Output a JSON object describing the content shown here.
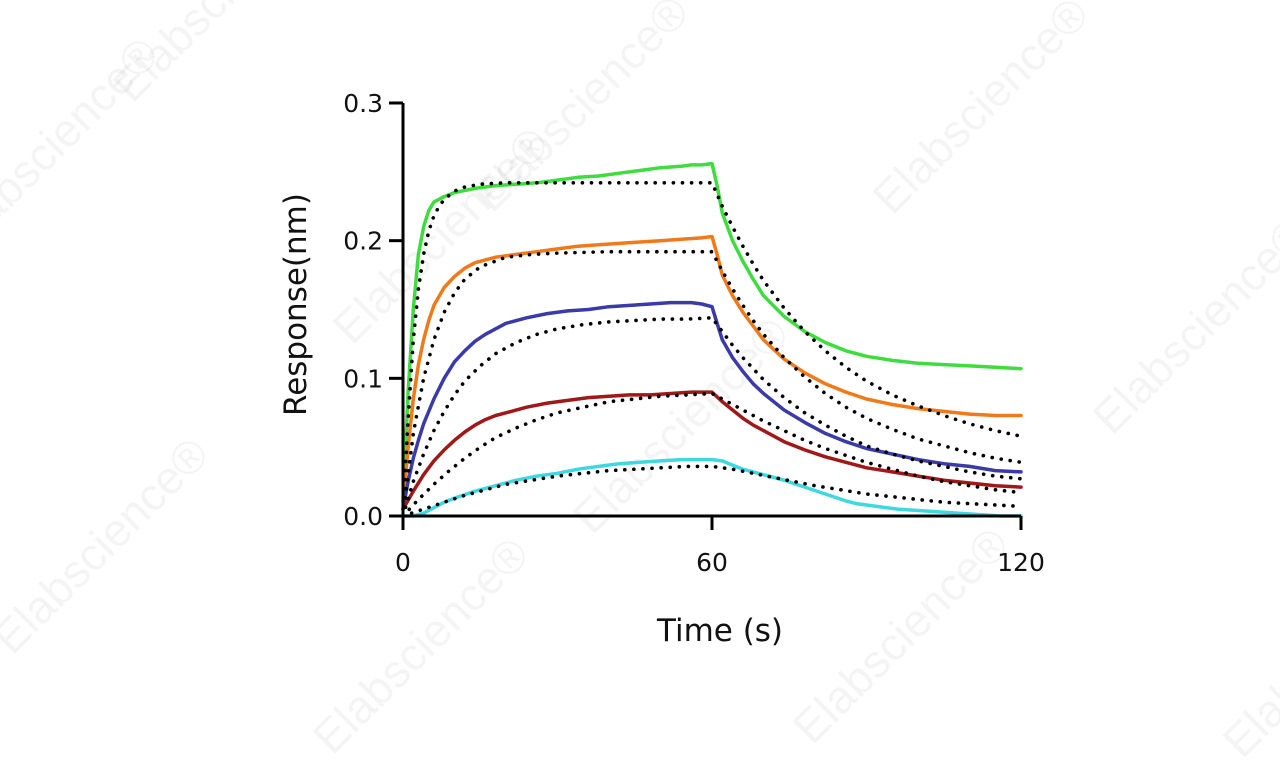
{
  "watermark": "Elabscience®",
  "chart_data": {
    "type": "line",
    "title": "",
    "xlabel": "Time (s)",
    "ylabel": "Response(nm)",
    "xlim": [
      0,
      120
    ],
    "ylim": [
      0,
      0.3
    ],
    "x_ticks": [
      0,
      60,
      120
    ],
    "x_tick_labels": [
      "0",
      "60",
      "120"
    ],
    "y_ticks": [
      0,
      0.1,
      0.2,
      0.3
    ],
    "y_tick_labels": [
      "0.0",
      "0.1",
      "0.2",
      "0.3"
    ],
    "grid": false,
    "legend": "none",
    "series": [
      {
        "color": "#3fdc3f",
        "style": "solid",
        "x": [
          0,
          1,
          2,
          3,
          4,
          5,
          6,
          8,
          10,
          14,
          18,
          22,
          26,
          30,
          34,
          38,
          42,
          46,
          50,
          54,
          56,
          58,
          60,
          61,
          62,
          64,
          66,
          68,
          70,
          74,
          78,
          82,
          86,
          90,
          95,
          100,
          105,
          110,
          115,
          120
        ],
        "y": [
          0.01,
          0.09,
          0.15,
          0.19,
          0.21,
          0.222,
          0.228,
          0.232,
          0.235,
          0.238,
          0.24,
          0.241,
          0.242,
          0.244,
          0.246,
          0.247,
          0.249,
          0.251,
          0.253,
          0.254,
          0.255,
          0.255,
          0.256,
          0.24,
          0.22,
          0.2,
          0.185,
          0.172,
          0.16,
          0.145,
          0.134,
          0.126,
          0.12,
          0.116,
          0.113,
          0.111,
          0.11,
          0.109,
          0.108,
          0.107
        ]
      },
      {
        "color": "#f07a1a",
        "style": "solid",
        "x": [
          0,
          1,
          2,
          3,
          4,
          5,
          6,
          8,
          10,
          12,
          14,
          18,
          22,
          26,
          30,
          34,
          38,
          42,
          46,
          50,
          54,
          58,
          60,
          61,
          62,
          64,
          66,
          68,
          70,
          74,
          78,
          82,
          86,
          90,
          95,
          100,
          105,
          110,
          115,
          120
        ],
        "y": [
          0.005,
          0.05,
          0.085,
          0.11,
          0.128,
          0.142,
          0.153,
          0.166,
          0.174,
          0.18,
          0.184,
          0.188,
          0.19,
          0.192,
          0.194,
          0.196,
          0.197,
          0.198,
          0.199,
          0.2,
          0.201,
          0.202,
          0.203,
          0.19,
          0.175,
          0.16,
          0.148,
          0.138,
          0.128,
          0.114,
          0.104,
          0.096,
          0.09,
          0.085,
          0.081,
          0.078,
          0.076,
          0.074,
          0.073,
          0.073
        ]
      },
      {
        "color": "#3a3aa8",
        "style": "solid",
        "x": [
          0,
          1,
          2,
          3,
          4,
          6,
          8,
          10,
          12,
          14,
          16,
          18,
          20,
          24,
          28,
          32,
          36,
          40,
          44,
          48,
          52,
          56,
          58,
          60,
          61,
          62,
          64,
          66,
          68,
          70,
          74,
          78,
          82,
          86,
          90,
          95,
          100,
          105,
          110,
          115,
          120
        ],
        "y": [
          0.005,
          0.025,
          0.042,
          0.055,
          0.067,
          0.085,
          0.1,
          0.112,
          0.12,
          0.127,
          0.132,
          0.136,
          0.14,
          0.144,
          0.147,
          0.149,
          0.15,
          0.152,
          0.153,
          0.154,
          0.155,
          0.155,
          0.154,
          0.152,
          0.14,
          0.128,
          0.115,
          0.105,
          0.096,
          0.089,
          0.077,
          0.068,
          0.06,
          0.054,
          0.049,
          0.045,
          0.041,
          0.038,
          0.036,
          0.033,
          0.032
        ]
      },
      {
        "color": "#a01818",
        "style": "solid",
        "x": [
          0,
          2,
          4,
          6,
          8,
          10,
          12,
          14,
          16,
          18,
          20,
          24,
          28,
          32,
          36,
          40,
          44,
          48,
          52,
          56,
          58,
          60,
          62,
          64,
          66,
          68,
          70,
          74,
          78,
          82,
          86,
          90,
          95,
          100,
          105,
          110,
          115,
          120
        ],
        "y": [
          0.005,
          0.018,
          0.03,
          0.04,
          0.048,
          0.055,
          0.061,
          0.066,
          0.07,
          0.073,
          0.075,
          0.079,
          0.082,
          0.084,
          0.086,
          0.087,
          0.088,
          0.088,
          0.089,
          0.09,
          0.09,
          0.09,
          0.083,
          0.077,
          0.071,
          0.066,
          0.062,
          0.054,
          0.048,
          0.043,
          0.039,
          0.035,
          0.032,
          0.029,
          0.026,
          0.024,
          0.022,
          0.021
        ]
      },
      {
        "color": "#3fd8e0",
        "style": "solid",
        "x": [
          0,
          2,
          4,
          6,
          8,
          10,
          14,
          18,
          22,
          26,
          30,
          34,
          38,
          42,
          46,
          50,
          54,
          58,
          60,
          62,
          64,
          66,
          70,
          74,
          78,
          82,
          86,
          88,
          92,
          96,
          100,
          104,
          108,
          112,
          116,
          120
        ],
        "y": [
          0.0,
          0.0,
          0.002,
          0.006,
          0.01,
          0.013,
          0.018,
          0.022,
          0.026,
          0.029,
          0.031,
          0.034,
          0.036,
          0.038,
          0.039,
          0.04,
          0.041,
          0.041,
          0.041,
          0.04,
          0.037,
          0.034,
          0.03,
          0.026,
          0.021,
          0.016,
          0.011,
          0.009,
          0.007,
          0.005,
          0.004,
          0.003,
          0.002,
          0.001,
          0.0,
          0.0
        ]
      },
      {
        "color": "#000000",
        "style": "dotted",
        "x": [
          0,
          1,
          2,
          3,
          4,
          5,
          6,
          7,
          8,
          10,
          12,
          15,
          20,
          30,
          40,
          50,
          60,
          62,
          64,
          66,
          68,
          70,
          74,
          78,
          82,
          86,
          90,
          95,
          100,
          105,
          110,
          115,
          120
        ],
        "y": [
          0.0,
          0.07,
          0.128,
          0.165,
          0.19,
          0.207,
          0.218,
          0.225,
          0.23,
          0.236,
          0.239,
          0.241,
          0.242,
          0.242,
          0.242,
          0.242,
          0.242,
          0.225,
          0.21,
          0.196,
          0.183,
          0.171,
          0.151,
          0.134,
          0.12,
          0.108,
          0.098,
          0.088,
          0.08,
          0.073,
          0.067,
          0.062,
          0.058
        ]
      },
      {
        "color": "#000000",
        "style": "dotted",
        "x": [
          0,
          2,
          4,
          6,
          8,
          10,
          12,
          15,
          20,
          25,
          30,
          40,
          50,
          60,
          62,
          64,
          66,
          68,
          70,
          74,
          78,
          82,
          86,
          90,
          95,
          100,
          105,
          110,
          115,
          120
        ],
        "y": [
          0.0,
          0.06,
          0.1,
          0.128,
          0.148,
          0.162,
          0.172,
          0.181,
          0.188,
          0.19,
          0.191,
          0.192,
          0.192,
          0.192,
          0.178,
          0.165,
          0.153,
          0.142,
          0.132,
          0.115,
          0.101,
          0.089,
          0.079,
          0.071,
          0.063,
          0.056,
          0.051,
          0.046,
          0.042,
          0.039
        ]
      },
      {
        "color": "#000000",
        "style": "dotted",
        "x": [
          0,
          2,
          4,
          6,
          8,
          10,
          12,
          15,
          18,
          22,
          26,
          30,
          35,
          40,
          45,
          50,
          55,
          60,
          62,
          64,
          66,
          68,
          70,
          74,
          78,
          82,
          86,
          90,
          95,
          100,
          105,
          110,
          115,
          120
        ],
        "y": [
          0.0,
          0.025,
          0.045,
          0.062,
          0.076,
          0.088,
          0.098,
          0.109,
          0.118,
          0.126,
          0.132,
          0.136,
          0.139,
          0.141,
          0.142,
          0.143,
          0.143,
          0.144,
          0.134,
          0.124,
          0.115,
          0.107,
          0.099,
          0.086,
          0.075,
          0.066,
          0.058,
          0.051,
          0.045,
          0.04,
          0.036,
          0.032,
          0.029,
          0.027
        ]
      },
      {
        "color": "#000000",
        "style": "dotted",
        "x": [
          0,
          3,
          6,
          9,
          12,
          15,
          18,
          22,
          26,
          30,
          35,
          40,
          45,
          50,
          55,
          60,
          63,
          66,
          70,
          74,
          78,
          82,
          86,
          90,
          95,
          100,
          105,
          110,
          115,
          120
        ],
        "y": [
          0.0,
          0.012,
          0.023,
          0.033,
          0.042,
          0.05,
          0.057,
          0.064,
          0.07,
          0.075,
          0.079,
          0.083,
          0.085,
          0.087,
          0.088,
          0.089,
          0.083,
          0.077,
          0.069,
          0.062,
          0.055,
          0.049,
          0.044,
          0.039,
          0.034,
          0.029,
          0.025,
          0.022,
          0.019,
          0.017
        ]
      },
      {
        "color": "#000000",
        "style": "dotted",
        "x": [
          0,
          4,
          8,
          12,
          16,
          20,
          25,
          30,
          35,
          40,
          45,
          50,
          55,
          60,
          64,
          68,
          72,
          76,
          80,
          85,
          90,
          95,
          100,
          105,
          110,
          115,
          120
        ],
        "y": [
          0.0,
          0.005,
          0.01,
          0.015,
          0.019,
          0.023,
          0.026,
          0.029,
          0.031,
          0.033,
          0.034,
          0.035,
          0.036,
          0.036,
          0.034,
          0.031,
          0.028,
          0.025,
          0.022,
          0.019,
          0.016,
          0.014,
          0.012,
          0.01,
          0.009,
          0.008,
          0.007
        ]
      }
    ]
  }
}
